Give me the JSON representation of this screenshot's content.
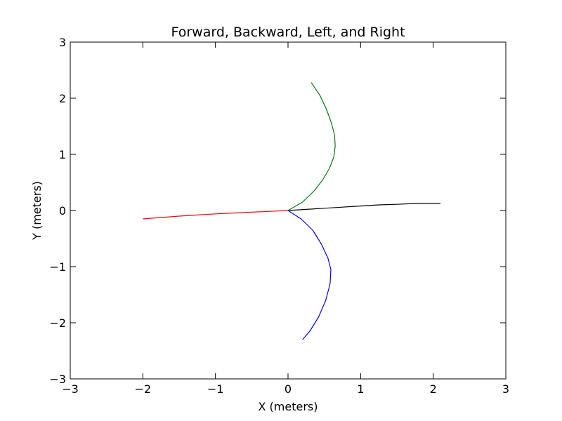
{
  "chart_data": {
    "type": "line",
    "title": "Forward, Backward, Left, and Right",
    "xlabel": "X (meters)",
    "ylabel": "Y (meters)",
    "xlim": [
      -3,
      3
    ],
    "ylim": [
      -3,
      3
    ],
    "xticks": [
      -3,
      -2,
      -1,
      0,
      1,
      2,
      3
    ],
    "yticks": [
      -3,
      -2,
      -1,
      0,
      1,
      2,
      3
    ],
    "xtick_labels": [
      "−3",
      "−2",
      "−1",
      "0",
      "1",
      "2",
      "3"
    ],
    "ytick_labels": [
      "−3",
      "−2",
      "−1",
      "0",
      "1",
      "2",
      "3"
    ],
    "grid": false,
    "legend": false,
    "series": [
      {
        "color": "#000000",
        "points": [
          [
            0.0,
            0.0
          ],
          [
            0.25,
            0.02
          ],
          [
            0.5,
            0.04
          ],
          [
            0.75,
            0.06
          ],
          [
            1.0,
            0.08
          ],
          [
            1.25,
            0.1
          ],
          [
            1.5,
            0.11
          ],
          [
            1.75,
            0.125
          ],
          [
            2.0,
            0.13
          ],
          [
            2.1,
            0.13
          ]
        ]
      },
      {
        "color": "#ff0000",
        "points": [
          [
            0.0,
            0.0
          ],
          [
            -0.25,
            -0.015
          ],
          [
            -0.5,
            -0.03
          ],
          [
            -0.75,
            -0.045
          ],
          [
            -1.0,
            -0.06
          ],
          [
            -1.25,
            -0.08
          ],
          [
            -1.5,
            -0.1
          ],
          [
            -1.75,
            -0.125
          ],
          [
            -2.0,
            -0.15
          ]
        ]
      },
      {
        "color": "#008000",
        "points": [
          [
            0.0,
            0.0
          ],
          [
            0.2,
            0.15
          ],
          [
            0.36,
            0.35
          ],
          [
            0.48,
            0.55
          ],
          [
            0.57,
            0.75
          ],
          [
            0.63,
            0.95
          ],
          [
            0.65,
            1.15
          ],
          [
            0.64,
            1.35
          ],
          [
            0.6,
            1.55
          ],
          [
            0.53,
            1.8
          ],
          [
            0.44,
            2.05
          ],
          [
            0.32,
            2.28
          ]
        ]
      },
      {
        "color": "#0000ff",
        "points": [
          [
            0.0,
            0.0
          ],
          [
            0.18,
            -0.15
          ],
          [
            0.34,
            -0.35
          ],
          [
            0.46,
            -0.6
          ],
          [
            0.55,
            -0.85
          ],
          [
            0.59,
            -1.05
          ],
          [
            0.58,
            -1.3
          ],
          [
            0.52,
            -1.6
          ],
          [
            0.42,
            -1.9
          ],
          [
            0.3,
            -2.15
          ],
          [
            0.2,
            -2.3
          ]
        ]
      }
    ]
  }
}
